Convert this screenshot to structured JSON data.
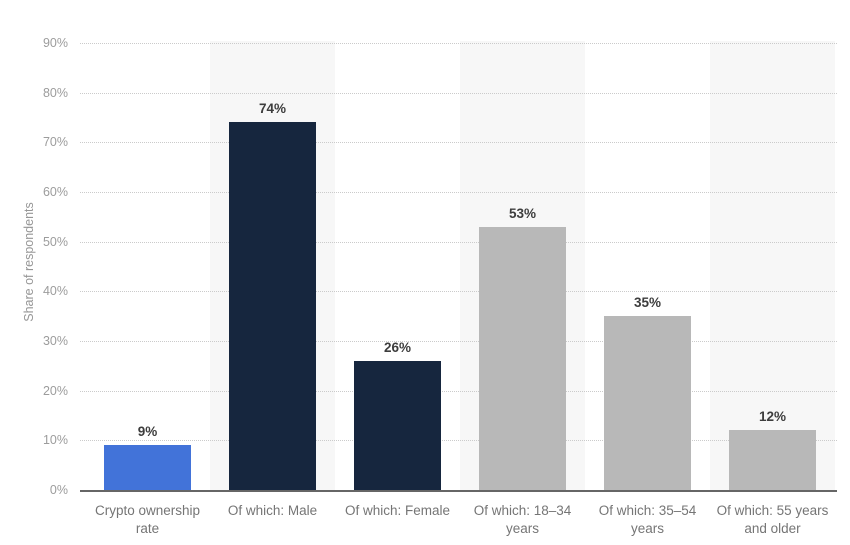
{
  "chart_data": {
    "type": "bar",
    "title": "",
    "xlabel": "",
    "ylabel": "Share of respondents",
    "ylim": [
      0,
      90
    ],
    "ytick_step": 10,
    "ytick_suffix": "%",
    "grid": "horizontal dotted lines at every 10%",
    "legend": "none",
    "plot_background": "alternating white and light gray column bands",
    "categories": [
      "Crypto ownership rate",
      "Of which: Male",
      "Of which: Female",
      "Of which: 18–34 years",
      "Of which: 35–54 years",
      "Of which: 55 years and older"
    ],
    "values": [
      9,
      74,
      26,
      53,
      35,
      12
    ],
    "value_labels": [
      "9%",
      "74%",
      "26%",
      "53%",
      "35%",
      "12%"
    ],
    "bar_colors": [
      "#4273d9",
      "#16263e",
      "#16263e",
      "#b8b8b8",
      "#b8b8b8",
      "#b8b8b8"
    ],
    "column_band_colors": [
      "#ffffff",
      "#f7f7f7",
      "#ffffff",
      "#f7f7f7",
      "#ffffff",
      "#f7f7f7"
    ]
  },
  "colors": {
    "background": "#ffffff",
    "blue_bar": "#4273d9",
    "navy_bar": "#16263e",
    "gray_bar": "#b8b8b8",
    "band": "#f7f7f7",
    "gridline": "#cbcbcb",
    "baseline": "#666666",
    "tick_label": "#9c9c9c",
    "axis_title": "#969696",
    "category_label": "#757575",
    "value_label": "#3d3d3d"
  }
}
